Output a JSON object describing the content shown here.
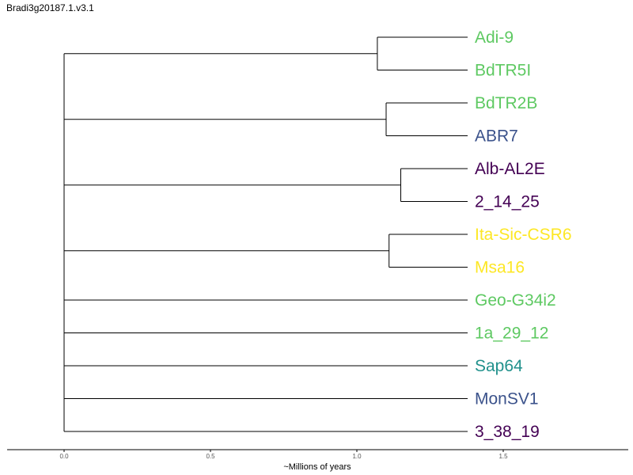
{
  "title": "Bradi3g20187.1.v3.1",
  "chart_data": {
    "type": "dendrogram",
    "xlabel": "~Millions of years",
    "xlim": [
      0.0,
      1.93
    ],
    "ticks": [
      "0.0",
      "0.5",
      "1.0",
      "1.5"
    ],
    "tick_values": [
      0.0,
      0.5,
      1.0,
      1.5
    ],
    "root_x": 0.0,
    "clades": [
      {
        "node": 1.07,
        "tips": [
          {
            "name": "Adi-9",
            "color": "#5ec962"
          },
          {
            "name": "BdTR5I",
            "color": "#5ec962"
          }
        ]
      },
      {
        "node": 1.1,
        "tips": [
          {
            "name": "BdTR2B",
            "color": "#5ec962"
          },
          {
            "name": "ABR7",
            "color": "#3b528b"
          }
        ]
      },
      {
        "node": 1.15,
        "tips": [
          {
            "name": "Alb-AL2E",
            "color": "#440154"
          },
          {
            "name": "2_14_25",
            "color": "#440154"
          }
        ]
      },
      {
        "node": 1.11,
        "tips": [
          {
            "name": "Ita-Sic-CSR6",
            "color": "#fde725"
          },
          {
            "name": "Msa16",
            "color": "#fde725"
          }
        ]
      },
      {
        "node": null,
        "tips": [
          {
            "name": "Geo-G34i2",
            "color": "#5ec962"
          }
        ]
      },
      {
        "node": null,
        "tips": [
          {
            "name": "1a_29_12",
            "color": "#5ec962"
          }
        ]
      },
      {
        "node": null,
        "tips": [
          {
            "name": "Sap64",
            "color": "#21918c"
          }
        ]
      },
      {
        "node": null,
        "tips": [
          {
            "name": "MonSV1",
            "color": "#3b528b"
          }
        ]
      },
      {
        "node": null,
        "tips": [
          {
            "name": "3_38_19",
            "color": "#440154"
          }
        ]
      }
    ],
    "tip_x": 1.4
  }
}
